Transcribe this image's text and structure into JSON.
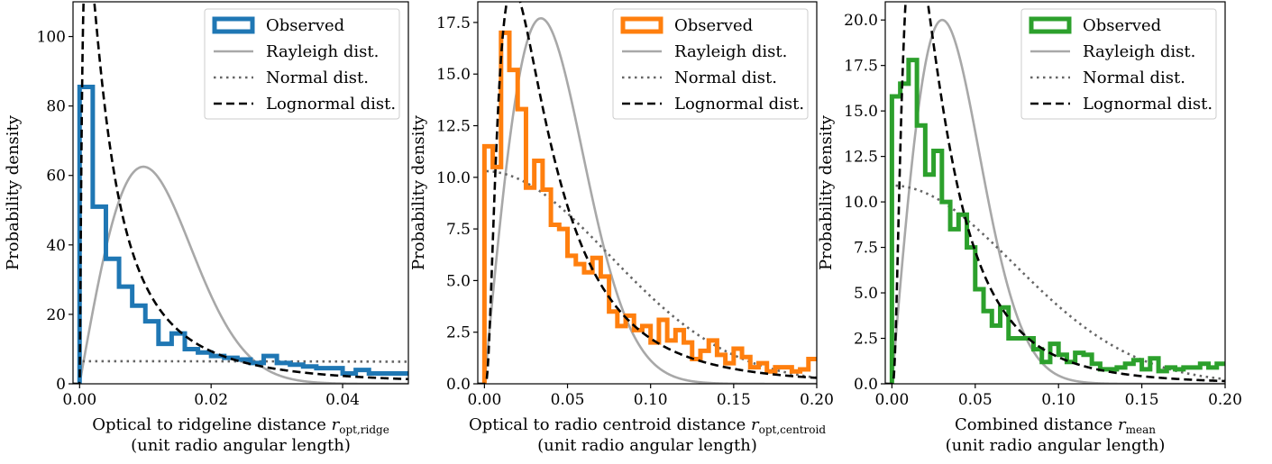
{
  "chart_data": [
    {
      "type": "line",
      "xlabel": "Optical to ridgeline distance",
      "xlabel_symbol": "r",
      "xlabel_subscript": "opt,ridge",
      "xlabel_line2": "(unit radio angular length)",
      "ylabel": "Probability density",
      "xlim": [
        -0.001,
        0.05
      ],
      "ylim": [
        0,
        110
      ],
      "xticks": [
        0.0,
        0.02,
        0.04
      ],
      "xtick_labels": [
        "0.00",
        "0.02",
        "0.04"
      ],
      "yticks": [
        0,
        20,
        40,
        60,
        80,
        100
      ],
      "ytick_labels": [
        "0",
        "20",
        "40",
        "60",
        "80",
        "100"
      ],
      "grid": false,
      "legend_position": "top-right",
      "hist_color": "#1f77b4",
      "histogram": {
        "name": "Observed",
        "edges": [
          0.0,
          0.002,
          0.004,
          0.006,
          0.008,
          0.01,
          0.012,
          0.014,
          0.016,
          0.018,
          0.02,
          0.022,
          0.024,
          0.026,
          0.028,
          0.03,
          0.032,
          0.034,
          0.036,
          0.038,
          0.04,
          0.042,
          0.044,
          0.046,
          0.048,
          0.05
        ],
        "values": [
          85.5,
          51,
          36,
          28,
          22.5,
          18,
          11.5,
          14.5,
          10,
          9,
          8,
          7.5,
          7,
          6,
          8,
          6,
          5.5,
          5,
          4.5,
          4.5,
          3,
          4,
          3,
          3,
          3
        ]
      },
      "rayleigh": {
        "name": "Rayleigh dist.",
        "sigma": 0.0097,
        "peak": 62.5
      },
      "normal": {
        "name": "Normal dist.",
        "mu": 0.0,
        "sigma": 0.245,
        "peak": 6.5
      },
      "lognormal": {
        "name": "Lognormal dist.",
        "mu": -5.2,
        "s": 1.25
      }
    },
    {
      "type": "line",
      "xlabel": "Optical to radio centroid distance",
      "xlabel_symbol": "r",
      "xlabel_subscript": "opt,centroid",
      "xlabel_line2": "(unit radio angular length)",
      "ylabel": "Probability density",
      "xlim": [
        -0.004,
        0.2
      ],
      "ylim": [
        0,
        18.5
      ],
      "xticks": [
        0.0,
        0.05,
        0.1,
        0.15,
        0.2
      ],
      "xtick_labels": [
        "0.00",
        "0.05",
        "0.10",
        "0.15",
        "0.20"
      ],
      "yticks": [
        0,
        2.5,
        5.0,
        7.5,
        10.0,
        12.5,
        15.0,
        17.5
      ],
      "ytick_labels": [
        "0.0",
        "2.5",
        "5.0",
        "7.5",
        "10.0",
        "12.5",
        "15.0",
        "17.5"
      ],
      "grid": false,
      "legend_position": "top-right",
      "hist_color": "#ff7f0e",
      "histogram": {
        "name": "Observed",
        "edges": [
          0.0,
          0.005,
          0.01,
          0.015,
          0.02,
          0.025,
          0.03,
          0.035,
          0.04,
          0.045,
          0.05,
          0.055,
          0.06,
          0.065,
          0.07,
          0.075,
          0.08,
          0.085,
          0.09,
          0.095,
          0.1,
          0.105,
          0.11,
          0.115,
          0.12,
          0.125,
          0.13,
          0.135,
          0.14,
          0.145,
          0.15,
          0.155,
          0.16,
          0.165,
          0.17,
          0.175,
          0.18,
          0.185,
          0.19,
          0.195,
          0.2
        ],
        "values": [
          11.5,
          10.5,
          17,
          15.2,
          13.3,
          9.5,
          10.8,
          9.4,
          7.7,
          7.5,
          6.2,
          5.8,
          5.4,
          6.1,
          5.2,
          3.5,
          2.8,
          3.3,
          2.6,
          2.8,
          2.0,
          3.1,
          2.1,
          2.6,
          2.0,
          1.2,
          1.6,
          2.1,
          1.4,
          1.0,
          1.7,
          1.3,
          0.8,
          1.0,
          0.6,
          0.8,
          0.8,
          0.6,
          0.7,
          1.2
        ]
      },
      "rayleigh": {
        "name": "Rayleigh dist.",
        "sigma": 0.034,
        "peak": 17.7
      },
      "normal": {
        "name": "Normal dist.",
        "mu": 0.0,
        "sigma": 0.075,
        "peak": 10.3
      },
      "lognormal": {
        "name": "Lognormal dist.",
        "mu": -3.35,
        "s": 0.85
      }
    },
    {
      "type": "line",
      "xlabel": "Combined distance",
      "xlabel_symbol": "r",
      "xlabel_subscript": "mean",
      "xlabel_line2": "(unit radio angular length)",
      "ylabel": "Probability density",
      "xlim": [
        -0.004,
        0.2
      ],
      "ylim": [
        0,
        21
      ],
      "xticks": [
        0.0,
        0.05,
        0.1,
        0.15,
        0.2
      ],
      "xtick_labels": [
        "0.00",
        "0.05",
        "0.10",
        "0.15",
        "0.20"
      ],
      "yticks": [
        0,
        2.5,
        5.0,
        7.5,
        10.0,
        12.5,
        15.0,
        17.5,
        20.0
      ],
      "ytick_labels": [
        "0.0",
        "2.5",
        "5.0",
        "7.5",
        "10.0",
        "12.5",
        "15.0",
        "17.5",
        "20.0"
      ],
      "grid": false,
      "legend_position": "top-right",
      "hist_color": "#2ca02c",
      "histogram": {
        "name": "Observed",
        "edges": [
          0.0,
          0.005,
          0.01,
          0.015,
          0.02,
          0.025,
          0.03,
          0.035,
          0.04,
          0.045,
          0.05,
          0.055,
          0.06,
          0.065,
          0.07,
          0.075,
          0.08,
          0.085,
          0.09,
          0.095,
          0.1,
          0.105,
          0.11,
          0.115,
          0.12,
          0.125,
          0.13,
          0.135,
          0.14,
          0.145,
          0.15,
          0.155,
          0.16,
          0.165,
          0.17,
          0.175,
          0.18,
          0.185,
          0.19,
          0.195,
          0.2
        ],
        "values": [
          15.8,
          16.5,
          17.8,
          14.2,
          11.5,
          12.8,
          10.0,
          8.5,
          9.3,
          7.5,
          5.2,
          4.0,
          3.2,
          4.2,
          2.5,
          2.5,
          2.5,
          1.9,
          1.2,
          2.2,
          1.6,
          1.2,
          1.7,
          1.6,
          1.1,
          0.8,
          0.8,
          0.9,
          1.1,
          1.3,
          0.8,
          1.4,
          0.7,
          0.9,
          0.8,
          0.9,
          0.9,
          1.1,
          0.9,
          1.1
        ]
      },
      "rayleigh": {
        "name": "Rayleigh dist.",
        "sigma": 0.0302,
        "peak": 20.0
      },
      "normal": {
        "name": "Normal dist.",
        "mu": 0.0,
        "sigma": 0.073,
        "peak": 10.9
      },
      "lognormal": {
        "name": "Lognormal dist.",
        "mu": -3.6,
        "s": 0.85
      }
    }
  ]
}
